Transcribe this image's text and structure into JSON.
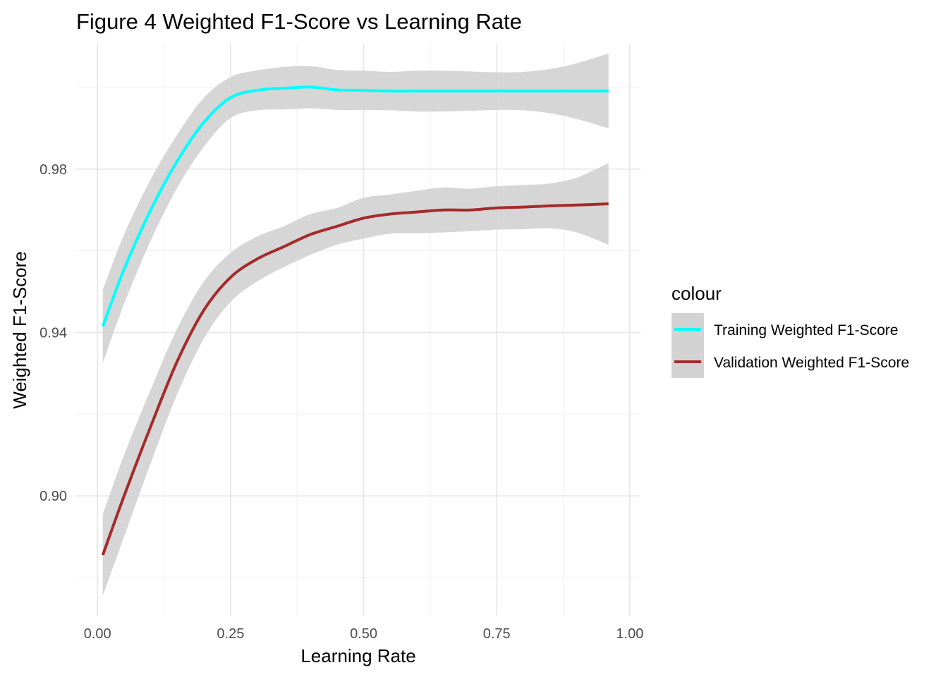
{
  "chart_data": {
    "type": "line",
    "title": "Figure 4 Weighted F1-Score vs Learning Rate",
    "xlabel": "Learning Rate",
    "ylabel": "Weighted F1-Score",
    "xlim": [
      -0.04,
      1.02
    ],
    "ylim": [
      0.8705,
      1.0107
    ],
    "x_ticks": [
      0.0,
      0.25,
      0.5,
      0.75,
      1.0
    ],
    "x_tick_labels": [
      "0.00",
      "0.25",
      "0.50",
      "0.75",
      "1.00"
    ],
    "y_ticks": [
      0.9,
      0.94,
      0.98
    ],
    "y_tick_labels": [
      "0.90",
      "0.94",
      "0.98"
    ],
    "grid": true,
    "legend": {
      "title": "colour",
      "placement": "right"
    },
    "confidence_band_color": "#d3d3d3",
    "series": [
      {
        "name": "Training Weighted F1-Score",
        "color": "#00ffff",
        "x": [
          0.01,
          0.05,
          0.1,
          0.15,
          0.2,
          0.25,
          0.3,
          0.35,
          0.4,
          0.45,
          0.5,
          0.55,
          0.6,
          0.65,
          0.7,
          0.75,
          0.8,
          0.85,
          0.9,
          0.96
        ],
        "y": [
          0.9415,
          0.9555,
          0.97,
          0.982,
          0.9915,
          0.9975,
          0.9993,
          0.9998,
          1.0001,
          0.9994,
          0.9993,
          0.9991,
          0.9991,
          0.9991,
          0.9991,
          0.9991,
          0.9991,
          0.9991,
          0.9991,
          0.9991
        ],
        "lower": [
          0.9325,
          0.947,
          0.9625,
          0.9755,
          0.9855,
          0.9925,
          0.9944,
          0.9946,
          0.9949,
          0.9945,
          0.9945,
          0.9944,
          0.9941,
          0.9941,
          0.9943,
          0.9945,
          0.9944,
          0.9937,
          0.9923,
          0.99
        ],
        "upper": [
          0.9505,
          0.964,
          0.9775,
          0.9885,
          0.9975,
          1.0025,
          1.0042,
          1.005,
          1.0052,
          1.0043,
          1.0041,
          1.0038,
          1.0041,
          1.0041,
          1.0039,
          1.0037,
          1.0038,
          1.0045,
          1.0059,
          1.0083
        ]
      },
      {
        "name": "Validation Weighted F1-Score",
        "color": "#a52a2a",
        "x": [
          0.01,
          0.05,
          0.1,
          0.15,
          0.2,
          0.25,
          0.3,
          0.35,
          0.4,
          0.45,
          0.5,
          0.55,
          0.6,
          0.65,
          0.7,
          0.75,
          0.8,
          0.85,
          0.9,
          0.96
        ],
        "y": [
          0.8855,
          0.9,
          0.917,
          0.933,
          0.9455,
          0.9535,
          0.958,
          0.961,
          0.964,
          0.966,
          0.968,
          0.969,
          0.9695,
          0.97,
          0.97,
          0.9705,
          0.9707,
          0.971,
          0.9712,
          0.9715
        ],
        "lower": [
          0.8755,
          0.89,
          0.908,
          0.925,
          0.9385,
          0.9475,
          0.9525,
          0.956,
          0.959,
          0.9615,
          0.963,
          0.9642,
          0.9643,
          0.9645,
          0.9648,
          0.9652,
          0.9653,
          0.9655,
          0.9645,
          0.9615
        ],
        "upper": [
          0.8955,
          0.91,
          0.926,
          0.941,
          0.9525,
          0.9595,
          0.9635,
          0.966,
          0.969,
          0.9705,
          0.973,
          0.9738,
          0.9747,
          0.9755,
          0.9752,
          0.9758,
          0.9761,
          0.9765,
          0.9779,
          0.9815
        ]
      }
    ]
  }
}
